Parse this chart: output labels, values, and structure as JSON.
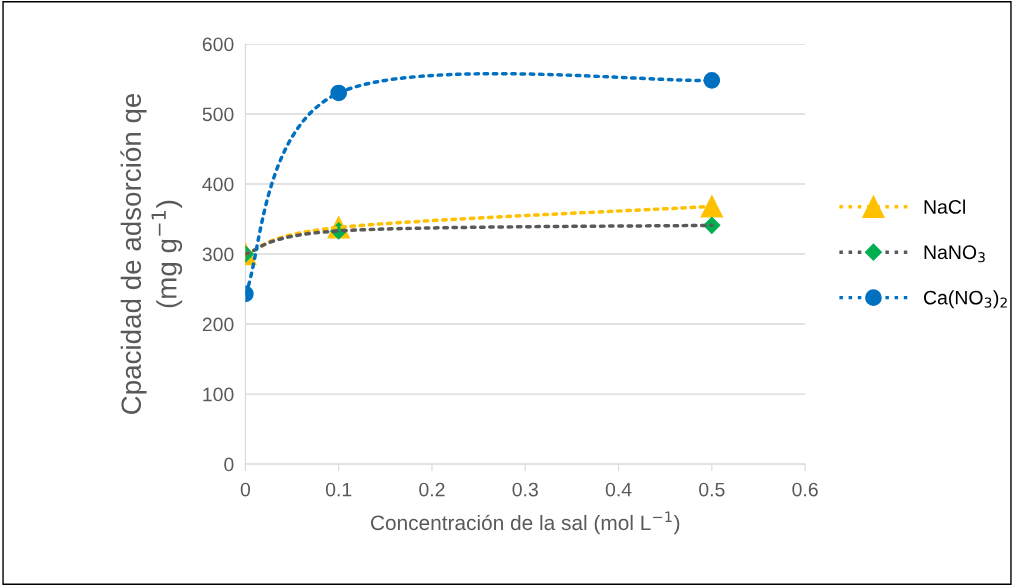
{
  "chart_data": {
    "type": "line",
    "xlabel": "Concentración de la sal (mol L$^{−1}$)",
    "ylabel": "Cpacidad de adsorción qe\n(mg g$^{−1}$)",
    "x": [
      0,
      0.1,
      0.5
    ],
    "series": [
      {
        "name": "NaCl",
        "color": "#ffc000",
        "marker": "triangle",
        "values": [
          300,
          338,
          368
        ]
      },
      {
        "name": "NaNO$_{3}$",
        "color": "#595959",
        "colors": [
          "#00b050",
          "#00b050",
          "#00b050"
        ],
        "marker": "diamond",
        "values": [
          300,
          333,
          341
        ]
      },
      {
        "name": "Ca(NO$_{3}$)$_{2}$",
        "color": "#0070c0",
        "marker": "circle",
        "values": [
          243,
          530,
          548
        ]
      }
    ],
    "xlim": [
      0,
      0.6
    ],
    "xticks": [
      0,
      0.1,
      0.2,
      0.3,
      0.4,
      0.5,
      0.6
    ],
    "ylim": [
      0,
      600
    ],
    "yticks": [
      0,
      100,
      200,
      300,
      400,
      500,
      600
    ],
    "grid": "y",
    "legend": "right",
    "line_style": "dotted"
  }
}
